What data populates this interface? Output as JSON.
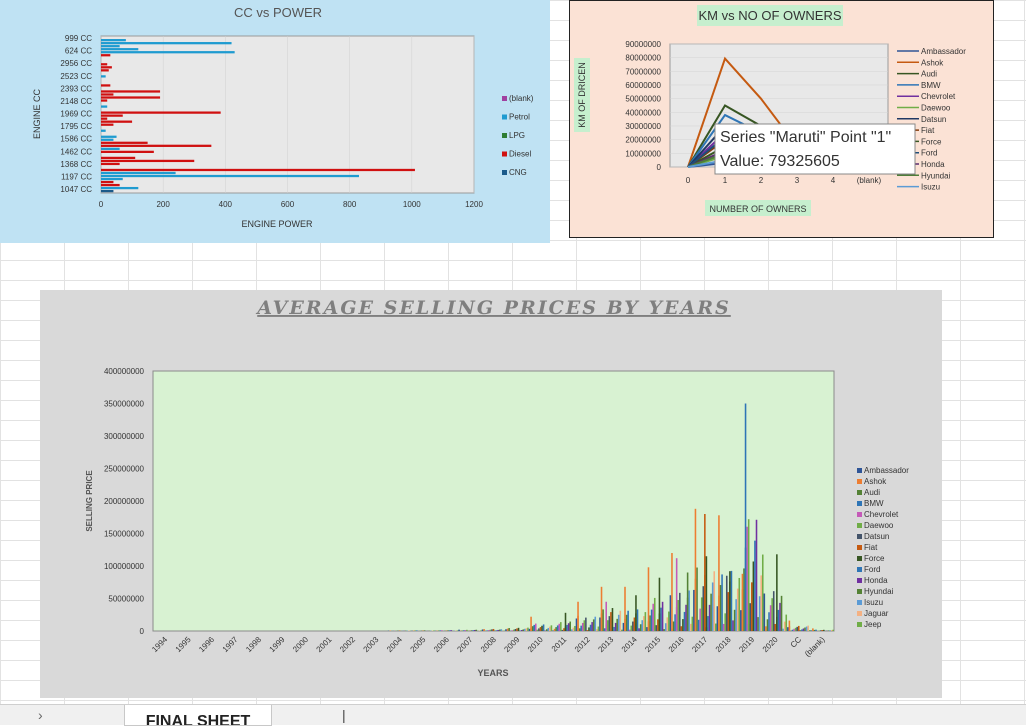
{
  "sheet_tab": "FINAL SHEET",
  "chart_data": [
    {
      "type": "bar",
      "title": "CC  vs POWER",
      "xlabel": "ENGINE POWER",
      "ylabel": "ENGINE CC",
      "xlim": [
        0,
        1200
      ],
      "xticks": [
        0,
        200,
        400,
        600,
        800,
        1000,
        1200
      ],
      "ytick_labels": [
        "999 CC",
        "624 CC",
        "2956 CC",
        "2523 CC",
        "2393 CC",
        "2148 CC",
        "1969 CC",
        "1795 CC",
        "1586 CC",
        "1462 CC",
        "1368 CC",
        "1197 CC",
        "1047 CC"
      ],
      "legend": [
        "(blank)",
        "Petrol",
        "LPG",
        "Diesel",
        "CNG"
      ],
      "legend_colors": [
        "#a040a0",
        "#1f9bd0",
        "#2e7d32",
        "#d01010",
        "#1a5a8a"
      ],
      "legend_position": "right",
      "bars": [
        {
          "row": 1,
          "value": 80,
          "s": 1
        },
        {
          "row": 2,
          "value": 420,
          "s": 1
        },
        {
          "row": 3,
          "value": 60,
          "s": 1
        },
        {
          "row": 4,
          "value": 120,
          "s": 1
        },
        {
          "row": 5,
          "value": 430,
          "s": 1
        },
        {
          "row": 6,
          "value": 30,
          "s": 3
        },
        {
          "row": 9,
          "value": 20,
          "s": 3
        },
        {
          "row": 10,
          "value": 35,
          "s": 3
        },
        {
          "row": 11,
          "value": 25,
          "s": 3
        },
        {
          "row": 13,
          "value": 15,
          "s": 1
        },
        {
          "row": 16,
          "value": 30,
          "s": 3
        },
        {
          "row": 18,
          "value": 190,
          "s": 3
        },
        {
          "row": 19,
          "value": 40,
          "s": 3
        },
        {
          "row": 20,
          "value": 190,
          "s": 3
        },
        {
          "row": 21,
          "value": 20,
          "s": 3
        },
        {
          "row": 23,
          "value": 20,
          "s": 1
        },
        {
          "row": 25,
          "value": 385,
          "s": 3
        },
        {
          "row": 26,
          "value": 70,
          "s": 3
        },
        {
          "row": 27,
          "value": 20,
          "s": 3
        },
        {
          "row": 28,
          "value": 100,
          "s": 3
        },
        {
          "row": 29,
          "value": 40,
          "s": 3
        },
        {
          "row": 31,
          "value": 15,
          "s": 1
        },
        {
          "row": 33,
          "value": 50,
          "s": 1
        },
        {
          "row": 34,
          "value": 40,
          "s": 1
        },
        {
          "row": 35,
          "value": 150,
          "s": 3
        },
        {
          "row": 36,
          "value": 355,
          "s": 3
        },
        {
          "row": 37,
          "value": 60,
          "s": 1
        },
        {
          "row": 38,
          "value": 170,
          "s": 3
        },
        {
          "row": 40,
          "value": 110,
          "s": 3
        },
        {
          "row": 41,
          "value": 300,
          "s": 3
        },
        {
          "row": 42,
          "value": 60,
          "s": 3
        },
        {
          "row": 44,
          "value": 1010,
          "s": 3
        },
        {
          "row": 45,
          "value": 240,
          "s": 1
        },
        {
          "row": 46,
          "value": 830,
          "s": 1
        },
        {
          "row": 47,
          "value": 70,
          "s": 1
        },
        {
          "row": 48,
          "value": 40,
          "s": 3
        },
        {
          "row": 49,
          "value": 60,
          "s": 3
        },
        {
          "row": 50,
          "value": 120,
          "s": 1
        },
        {
          "row": 51,
          "value": 40,
          "s": 4
        }
      ]
    },
    {
      "type": "line",
      "title": "KM  vs NO OF OWNERS",
      "xlabel": "NUMBER OF OWNERS",
      "ylabel": "KM OF DRICEN",
      "categories": [
        "0",
        "1",
        "2",
        "3",
        "4",
        "(blank)"
      ],
      "ylim": [
        0,
        90000000
      ],
      "yticks": [
        0,
        10000000,
        20000000,
        30000000,
        40000000,
        50000000,
        60000000,
        70000000,
        80000000,
        90000000
      ],
      "series": [
        {
          "name": "Ambassador",
          "color": "#2f5597",
          "values": [
            0,
            3000000,
            1000000,
            300000,
            0,
            0
          ]
        },
        {
          "name": "Ashok",
          "color": "#c55a11",
          "values": [
            0,
            79325605,
            50000000,
            15000000,
            2000000,
            0
          ]
        },
        {
          "name": "Audi",
          "color": "#375623",
          "values": [
            0,
            45000000,
            30000000,
            10000000,
            1000000,
            0
          ]
        },
        {
          "name": "BMW",
          "color": "#2e75b6",
          "values": [
            0,
            38000000,
            25000000,
            8000000,
            500000,
            0
          ]
        },
        {
          "name": "Chevrolet",
          "color": "#7030a0",
          "values": [
            0,
            25000000,
            15000000,
            5000000,
            500000,
            0
          ]
        },
        {
          "name": "Daewoo",
          "color": "#70ad47",
          "values": [
            0,
            8000000,
            5000000,
            1000000,
            0,
            0
          ]
        },
        {
          "name": "Datsun",
          "color": "#203864",
          "values": [
            0,
            30000000,
            20000000,
            6000000,
            500000,
            0
          ]
        },
        {
          "name": "Fiat",
          "color": "#843c0c",
          "values": [
            0,
            20000000,
            12000000,
            4000000,
            300000,
            0
          ]
        },
        {
          "name": "Force",
          "color": "#385723",
          "values": [
            0,
            15000000,
            8000000,
            2000000,
            0,
            0
          ]
        },
        {
          "name": "Ford",
          "color": "#1f4e79",
          "values": [
            0,
            22000000,
            14000000,
            4000000,
            300000,
            0
          ]
        },
        {
          "name": "Honda",
          "color": "#5b2c6f",
          "values": [
            0,
            12000000,
            7000000,
            2000000,
            0,
            0
          ]
        },
        {
          "name": "Hyundai",
          "color": "#4e7d3a",
          "values": [
            0,
            10000000,
            6000000,
            1500000,
            0,
            0
          ]
        },
        {
          "name": "Isuzu",
          "color": "#5b9bd5",
          "values": [
            0,
            5000000,
            3000000,
            800000,
            0,
            0
          ]
        }
      ],
      "tooltip_line1": "Series \"Maruti\" Point \"1\"",
      "tooltip_line2": "Value: 79325605",
      "legend_position": "right"
    },
    {
      "type": "bar",
      "title": "AVERAGE SELLING PRICES BY YEARS",
      "xlabel": "YEARS",
      "ylabel": "SELLING PRICE",
      "categories": [
        "1994",
        "1995",
        "1996",
        "1997",
        "1998",
        "1999",
        "2000",
        "2001",
        "2002",
        "2003",
        "2004",
        "2005",
        "2006",
        "2007",
        "2008",
        "2009",
        "2010",
        "2011",
        "2012",
        "2013",
        "2014",
        "2015",
        "2016",
        "2017",
        "2018",
        "2019",
        "2020",
        "CC",
        "(blank)"
      ],
      "ylim": [
        0,
        400000000
      ],
      "yticks": [
        0,
        50000000,
        100000000,
        150000000,
        200000000,
        250000000,
        300000000,
        350000000,
        400000000
      ],
      "legend": [
        "Ambassador",
        "Ashok",
        "Audi",
        "BMW",
        "Chevrolet",
        "Daewoo",
        "Datsun",
        "Fiat",
        "Force",
        "Ford",
        "Honda",
        "Hyundai",
        "Isuzu",
        "Jaguar",
        "Jeep"
      ],
      "legend_colors": [
        "#2f5597",
        "#ed7d31",
        "#548235",
        "#2e75b6",
        "#c55ab8",
        "#70ad47",
        "#44546a",
        "#c55a11",
        "#375623",
        "#2e75b6",
        "#7030a0",
        "#548235",
        "#5b9bd5",
        "#f4b183",
        "#70ad47"
      ],
      "legend_position": "right",
      "year_max": [
        0,
        0,
        0,
        0,
        0,
        0,
        0,
        0,
        0,
        0,
        1500000,
        1800000,
        2500000,
        4000000,
        6000000,
        10000000,
        22000000,
        28000000,
        45000000,
        68000000,
        68000000,
        98000000,
        120000000,
        188000000,
        178000000,
        350000000,
        118000000,
        16000000,
        4000000
      ],
      "spikes": [
        {
          "year": 16,
          "series": 1,
          "value": 22000000
        },
        {
          "year": 17,
          "series": 8,
          "value": 28000000
        },
        {
          "year": 18,
          "series": 1,
          "value": 45000000
        },
        {
          "year": 19,
          "series": 1,
          "value": 68000000
        },
        {
          "year": 19,
          "series": 4,
          "value": 45000000
        },
        {
          "year": 20,
          "series": 1,
          "value": 68000000
        },
        {
          "year": 20,
          "series": 8,
          "value": 55000000
        },
        {
          "year": 21,
          "series": 1,
          "value": 98000000
        },
        {
          "year": 21,
          "series": 8,
          "value": 82000000
        },
        {
          "year": 22,
          "series": 1,
          "value": 120000000
        },
        {
          "year": 22,
          "series": 4,
          "value": 112000000
        },
        {
          "year": 22,
          "series": 11,
          "value": 90000000
        },
        {
          "year": 23,
          "series": 1,
          "value": 188000000
        },
        {
          "year": 23,
          "series": 8,
          "value": 115000000
        },
        {
          "year": 23,
          "series": 7,
          "value": 180000000
        },
        {
          "year": 24,
          "series": 1,
          "value": 178000000
        },
        {
          "year": 24,
          "series": 8,
          "value": 92000000
        },
        {
          "year": 24,
          "series": 6,
          "value": 85000000
        },
        {
          "year": 25,
          "series": 3,
          "value": 350000000
        },
        {
          "year": 25,
          "series": 5,
          "value": 172000000
        },
        {
          "year": 25,
          "series": 1,
          "value": 88000000
        },
        {
          "year": 26,
          "series": 8,
          "value": 118000000
        },
        {
          "year": 27,
          "series": 1,
          "value": 16000000
        },
        {
          "year": 28,
          "series": 1,
          "value": 4000000
        }
      ]
    }
  ]
}
